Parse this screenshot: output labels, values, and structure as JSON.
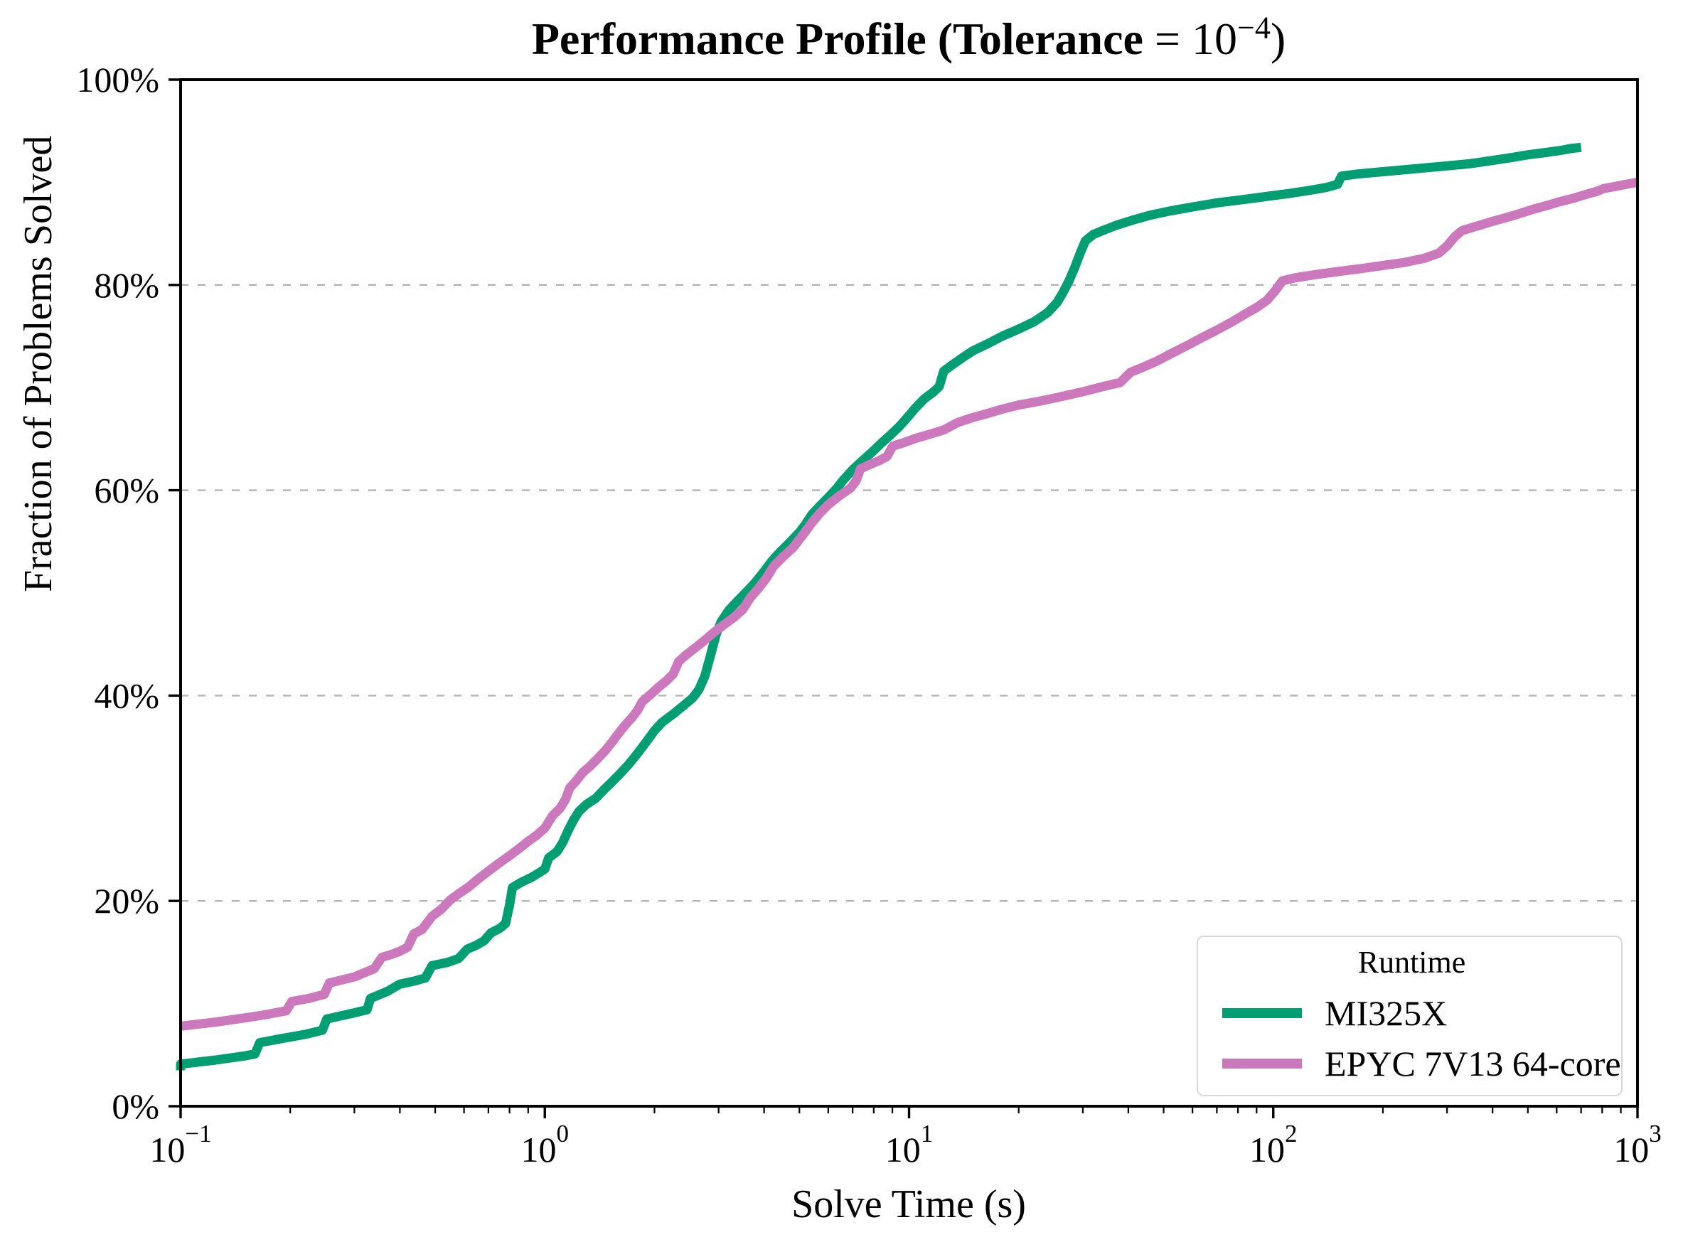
{
  "title": {
    "text_bold": "Performance Profile (Tolerance",
    "equals": " = ",
    "power_base": "10",
    "power_exponent": "−4",
    "close_paren": ")"
  },
  "axes": {
    "x": {
      "label": "Solve Time (s)",
      "scale": "log",
      "min": 0.1,
      "max": 1000,
      "ticks": [
        {
          "base": "10",
          "exp": "−1",
          "value": 0.1
        },
        {
          "base": "10",
          "exp": "0",
          "value": 1
        },
        {
          "base": "10",
          "exp": "1",
          "value": 10
        },
        {
          "base": "10",
          "exp": "2",
          "value": 100
        },
        {
          "base": "10",
          "exp": "3",
          "value": 1000
        }
      ]
    },
    "y": {
      "label": "Fraction of Problems Solved",
      "min": 0,
      "max": 100,
      "ticks": [
        {
          "label": "0%",
          "value": 0
        },
        {
          "label": "20%",
          "value": 20
        },
        {
          "label": "40%",
          "value": 40
        },
        {
          "label": "60%",
          "value": 60
        },
        {
          "label": "80%",
          "value": 80
        },
        {
          "label": "100%",
          "value": 100
        }
      ],
      "gridlines": [
        20,
        40,
        60,
        80
      ]
    }
  },
  "legend": {
    "title": "Runtime",
    "position": "lower right"
  },
  "colors": {
    "background": "#ffffff",
    "axis": "#000000",
    "grid": "#b3b3b3",
    "legend_border": "#d9d9d9"
  },
  "chart_data": {
    "type": "line",
    "title": "Performance Profile (Tolerance = 10^−4)",
    "xlabel": "Solve Time (s)",
    "ylabel": "Fraction of Problems Solved",
    "x_scale": "log",
    "xlim": [
      0.1,
      1000
    ],
    "ylim": [
      0,
      100
    ],
    "grid": "horizontal-dashed",
    "legend_position": "lower right",
    "series": [
      {
        "name": "MI325X",
        "color": "#029e73",
        "points": [
          [
            0.1,
            3.5
          ],
          [
            0.1,
            4.1
          ],
          [
            0.125,
            4.5
          ],
          [
            0.15,
            4.9
          ],
          [
            0.16,
            5.1
          ],
          [
            0.165,
            6.2
          ],
          [
            0.19,
            6.6
          ],
          [
            0.22,
            7.0
          ],
          [
            0.245,
            7.4
          ],
          [
            0.252,
            8.5
          ],
          [
            0.3,
            9.1
          ],
          [
            0.325,
            9.4
          ],
          [
            0.332,
            10.5
          ],
          [
            0.37,
            11.2
          ],
          [
            0.4,
            11.9
          ],
          [
            0.44,
            12.2
          ],
          [
            0.47,
            12.5
          ],
          [
            0.49,
            13.7
          ],
          [
            0.54,
            14.0
          ],
          [
            0.58,
            14.4
          ],
          [
            0.612,
            15.3
          ],
          [
            0.65,
            15.7
          ],
          [
            0.68,
            16.1
          ],
          [
            0.712,
            16.9
          ],
          [
            0.75,
            17.3
          ],
          [
            0.78,
            17.8
          ],
          [
            0.8,
            19.6
          ],
          [
            0.815,
            21.3
          ],
          [
            0.86,
            21.8
          ],
          [
            0.92,
            22.3
          ],
          [
            0.97,
            22.8
          ],
          [
            1.0,
            23.1
          ],
          [
            1.025,
            24.2
          ],
          [
            1.08,
            24.8
          ],
          [
            1.12,
            25.7
          ],
          [
            1.16,
            26.9
          ],
          [
            1.2,
            27.9
          ],
          [
            1.24,
            28.7
          ],
          [
            1.3,
            29.4
          ],
          [
            1.38,
            30.0
          ],
          [
            1.45,
            30.8
          ],
          [
            1.52,
            31.5
          ],
          [
            1.6,
            32.3
          ],
          [
            1.7,
            33.3
          ],
          [
            1.8,
            34.4
          ],
          [
            1.9,
            35.5
          ],
          [
            2.0,
            36.6
          ],
          [
            2.1,
            37.4
          ],
          [
            2.25,
            38.2
          ],
          [
            2.4,
            39.0
          ],
          [
            2.55,
            39.8
          ],
          [
            2.65,
            40.6
          ],
          [
            2.75,
            41.9
          ],
          [
            2.85,
            43.9
          ],
          [
            2.95,
            45.9
          ],
          [
            3.05,
            47.2
          ],
          [
            3.2,
            48.3
          ],
          [
            3.4,
            49.3
          ],
          [
            3.6,
            50.2
          ],
          [
            3.8,
            51.1
          ],
          [
            4.0,
            52.1
          ],
          [
            4.2,
            53.1
          ],
          [
            4.4,
            53.9
          ],
          [
            4.7,
            54.9
          ],
          [
            5.0,
            55.9
          ],
          [
            5.2,
            56.7
          ],
          [
            5.4,
            57.6
          ],
          [
            5.7,
            58.5
          ],
          [
            6.0,
            59.3
          ],
          [
            6.3,
            60.1
          ],
          [
            6.6,
            61.0
          ],
          [
            7.0,
            62.0
          ],
          [
            7.4,
            62.8
          ],
          [
            7.9,
            63.7
          ],
          [
            8.4,
            64.6
          ],
          [
            8.9,
            65.4
          ],
          [
            9.4,
            66.2
          ],
          [
            9.9,
            67.1
          ],
          [
            10.4,
            68.0
          ],
          [
            11.0,
            68.9
          ],
          [
            11.6,
            69.5
          ],
          [
            12.1,
            70.1
          ],
          [
            12.45,
            71.6
          ],
          [
            13.0,
            72.1
          ],
          [
            14.0,
            72.9
          ],
          [
            15.0,
            73.6
          ],
          [
            16.5,
            74.3
          ],
          [
            18.0,
            75.0
          ],
          [
            20.0,
            75.7
          ],
          [
            22.0,
            76.4
          ],
          [
            24.0,
            77.3
          ],
          [
            25.5,
            78.3
          ],
          [
            26.5,
            79.3
          ],
          [
            27.5,
            80.4
          ],
          [
            28.5,
            81.7
          ],
          [
            29.5,
            83.1
          ],
          [
            30.5,
            84.3
          ],
          [
            32.0,
            84.9
          ],
          [
            34.0,
            85.3
          ],
          [
            37.0,
            85.8
          ],
          [
            41.0,
            86.3
          ],
          [
            46.0,
            86.8
          ],
          [
            52.0,
            87.2
          ],
          [
            60.0,
            87.6
          ],
          [
            70.0,
            88.0
          ],
          [
            82.0,
            88.3
          ],
          [
            95.0,
            88.6
          ],
          [
            110,
            88.9
          ],
          [
            125,
            89.2
          ],
          [
            140,
            89.5
          ],
          [
            150,
            89.8
          ],
          [
            154,
            90.6
          ],
          [
            170,
            90.8
          ],
          [
            195,
            91.0
          ],
          [
            225,
            91.2
          ],
          [
            260,
            91.4
          ],
          [
            300,
            91.6
          ],
          [
            345,
            91.8
          ],
          [
            395,
            92.1
          ],
          [
            450,
            92.4
          ],
          [
            505,
            92.7
          ],
          [
            560,
            92.9
          ],
          [
            615,
            93.1
          ],
          [
            660,
            93.3
          ],
          [
            700,
            93.4
          ]
        ]
      },
      {
        "name": "EPYC 7V13 64-core",
        "color": "#cc78bc",
        "points": [
          [
            0.1,
            7.8
          ],
          [
            0.125,
            8.2
          ],
          [
            0.15,
            8.6
          ],
          [
            0.17,
            8.9
          ],
          [
            0.195,
            9.3
          ],
          [
            0.202,
            10.2
          ],
          [
            0.225,
            10.5
          ],
          [
            0.248,
            10.9
          ],
          [
            0.256,
            12.0
          ],
          [
            0.3,
            12.6
          ],
          [
            0.34,
            13.4
          ],
          [
            0.357,
            14.5
          ],
          [
            0.38,
            14.8
          ],
          [
            0.4,
            15.1
          ],
          [
            0.42,
            15.5
          ],
          [
            0.437,
            16.8
          ],
          [
            0.46,
            17.2
          ],
          [
            0.49,
            18.5
          ],
          [
            0.52,
            19.2
          ],
          [
            0.55,
            20.1
          ],
          [
            0.58,
            20.7
          ],
          [
            0.62,
            21.4
          ],
          [
            0.66,
            22.2
          ],
          [
            0.7,
            22.9
          ],
          [
            0.75,
            23.7
          ],
          [
            0.8,
            24.4
          ],
          [
            0.85,
            25.1
          ],
          [
            0.9,
            25.8
          ],
          [
            0.95,
            26.4
          ],
          [
            1.0,
            27.1
          ],
          [
            1.05,
            28.3
          ],
          [
            1.1,
            29.0
          ],
          [
            1.14,
            29.9
          ],
          [
            1.17,
            31.0
          ],
          [
            1.22,
            31.7
          ],
          [
            1.27,
            32.5
          ],
          [
            1.33,
            33.1
          ],
          [
            1.4,
            33.9
          ],
          [
            1.47,
            34.7
          ],
          [
            1.54,
            35.6
          ],
          [
            1.6,
            36.4
          ],
          [
            1.67,
            37.2
          ],
          [
            1.74,
            37.9
          ],
          [
            1.8,
            38.6
          ],
          [
            1.85,
            39.4
          ],
          [
            1.95,
            40.1
          ],
          [
            2.05,
            40.8
          ],
          [
            2.15,
            41.4
          ],
          [
            2.25,
            42.1
          ],
          [
            2.33,
            43.3
          ],
          [
            2.45,
            44.0
          ],
          [
            2.6,
            44.7
          ],
          [
            2.75,
            45.4
          ],
          [
            2.9,
            46.1
          ],
          [
            3.1,
            46.9
          ],
          [
            3.3,
            47.6
          ],
          [
            3.5,
            48.4
          ],
          [
            3.66,
            49.5
          ],
          [
            3.85,
            50.4
          ],
          [
            4.05,
            51.4
          ],
          [
            4.25,
            52.6
          ],
          [
            4.5,
            53.5
          ],
          [
            4.8,
            54.4
          ],
          [
            5.1,
            55.6
          ],
          [
            5.4,
            56.8
          ],
          [
            5.7,
            57.8
          ],
          [
            6.0,
            58.6
          ],
          [
            6.4,
            59.4
          ],
          [
            6.9,
            60.2
          ],
          [
            7.15,
            60.9
          ],
          [
            7.36,
            62.1
          ],
          [
            7.8,
            62.5
          ],
          [
            8.3,
            62.9
          ],
          [
            8.7,
            63.3
          ],
          [
            9.02,
            64.3
          ],
          [
            9.6,
            64.6
          ],
          [
            10.5,
            65.1
          ],
          [
            11.5,
            65.5
          ],
          [
            12.5,
            65.9
          ],
          [
            13.6,
            66.6
          ],
          [
            15.0,
            67.1
          ],
          [
            16.5,
            67.5
          ],
          [
            18.0,
            67.9
          ],
          [
            20.0,
            68.3
          ],
          [
            23.0,
            68.7
          ],
          [
            26.0,
            69.1
          ],
          [
            30.0,
            69.6
          ],
          [
            34.0,
            70.1
          ],
          [
            38.0,
            70.5
          ],
          [
            40.6,
            71.5
          ],
          [
            44.0,
            72.0
          ],
          [
            48.0,
            72.6
          ],
          [
            53.0,
            73.4
          ],
          [
            58.0,
            74.1
          ],
          [
            64.0,
            74.9
          ],
          [
            70.0,
            75.6
          ],
          [
            77.0,
            76.4
          ],
          [
            84.0,
            77.2
          ],
          [
            90.0,
            77.8
          ],
          [
            96.0,
            78.5
          ],
          [
            101,
            79.4
          ],
          [
            106,
            80.4
          ],
          [
            115,
            80.7
          ],
          [
            130,
            81.0
          ],
          [
            150,
            81.3
          ],
          [
            175,
            81.6
          ],
          [
            200,
            81.9
          ],
          [
            230,
            82.2
          ],
          [
            260,
            82.6
          ],
          [
            285,
            83.1
          ],
          [
            300,
            83.8
          ],
          [
            315,
            84.7
          ],
          [
            330,
            85.3
          ],
          [
            360,
            85.7
          ],
          [
            400,
            86.2
          ],
          [
            440,
            86.6
          ],
          [
            480,
            87.0
          ],
          [
            520,
            87.4
          ],
          [
            560,
            87.7
          ],
          [
            610,
            88.1
          ],
          [
            660,
            88.4
          ],
          [
            720,
            88.8
          ],
          [
            770,
            89.1
          ],
          [
            810,
            89.4
          ],
          [
            870,
            89.6
          ],
          [
            930,
            89.8
          ],
          [
            1000,
            90.0
          ]
        ]
      }
    ]
  }
}
